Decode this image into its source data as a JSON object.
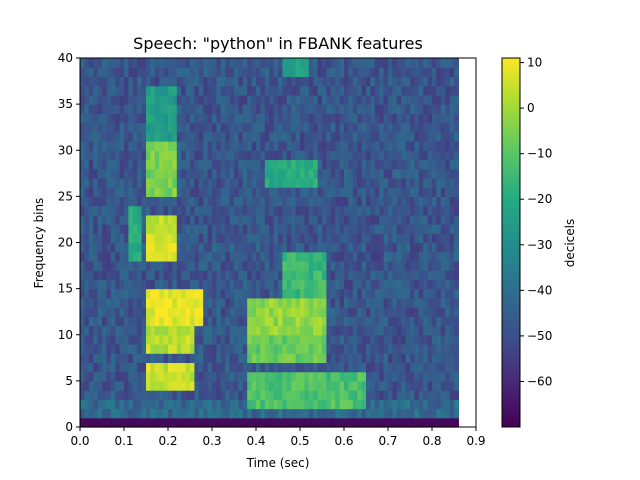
{
  "chart_data": {
    "type": "heatmap",
    "title": "Speech: \"python\" in FBANK features",
    "xlabel": "Time (sec)",
    "ylabel": "Frequency bins",
    "colorbar_label": "decicels",
    "colormap": "viridis",
    "xlim": [
      0.0,
      0.9
    ],
    "ylim": [
      0,
      40
    ],
    "data_extent_x": [
      0.0,
      0.86
    ],
    "x_ticks": [
      "0.0",
      "0.1",
      "0.2",
      "0.3",
      "0.4",
      "0.5",
      "0.6",
      "0.7",
      "0.8",
      "0.9"
    ],
    "x_tick_values": [
      0.0,
      0.1,
      0.2,
      0.3,
      0.4,
      0.5,
      0.6,
      0.7,
      0.8,
      0.9
    ],
    "y_ticks": [
      "0",
      "5",
      "10",
      "15",
      "20",
      "25",
      "30",
      "35",
      "40"
    ],
    "y_tick_values": [
      0,
      5,
      10,
      15,
      20,
      25,
      30,
      35,
      40
    ],
    "colorbar_range": [
      -70,
      11
    ],
    "colorbar_ticks": [
      "10",
      "0",
      "−10",
      "−20",
      "−30",
      "−40",
      "−50",
      "−60"
    ],
    "colorbar_tick_values": [
      10,
      0,
      -10,
      -20,
      -30,
      -40,
      -50,
      -60
    ],
    "n_time_frames": 86,
    "n_freq_bins": 40,
    "background_level_db": -48,
    "bottom_bin_db": -68,
    "features": [
      {
        "t0": 0.15,
        "t1": 0.28,
        "f0": 11,
        "f1": 14,
        "db": 9
      },
      {
        "t0": 0.15,
        "t1": 0.26,
        "f0": 8,
        "f1": 10,
        "db": 3
      },
      {
        "t0": 0.15,
        "t1": 0.26,
        "f0": 4,
        "f1": 6,
        "db": 5
      },
      {
        "t0": 0.15,
        "t1": 0.22,
        "f0": 18,
        "f1": 22,
        "db": 6
      },
      {
        "t0": 0.15,
        "t1": 0.22,
        "f0": 25,
        "f1": 30,
        "db": -5
      },
      {
        "t0": 0.11,
        "t1": 0.14,
        "f0": 18,
        "f1": 23,
        "db": -20
      },
      {
        "t0": 0.15,
        "t1": 0.22,
        "f0": 31,
        "f1": 36,
        "db": -25
      },
      {
        "t0": 0.38,
        "t1": 0.56,
        "f0": 10,
        "f1": 13,
        "db": -2
      },
      {
        "t0": 0.38,
        "t1": 0.56,
        "f0": 7,
        "f1": 9,
        "db": -8
      },
      {
        "t0": 0.38,
        "t1": 0.65,
        "f0": 2,
        "f1": 5,
        "db": -12
      },
      {
        "t0": 0.46,
        "t1": 0.56,
        "f0": 14,
        "f1": 18,
        "db": -15
      },
      {
        "t0": 0.42,
        "t1": 0.54,
        "f0": 26,
        "f1": 28,
        "db": -20
      },
      {
        "t0": 0.46,
        "t1": 0.52,
        "f0": 38,
        "f1": 40,
        "db": -22
      }
    ]
  }
}
